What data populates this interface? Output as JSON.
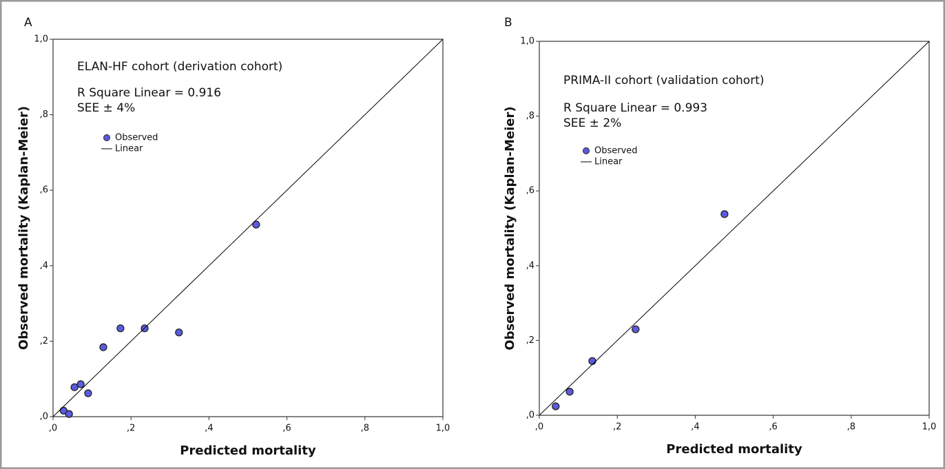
{
  "chart_data": [
    {
      "type": "scatter",
      "panel_label": "A",
      "annotations": [
        "ELAN-HF cohort (derivation cohort)",
        "R Square Linear = 0.916",
        "SEE ± 4%"
      ],
      "xlabel": "Predicted mortality",
      "ylabel": "Observed mortality (Kaplan-Meier)",
      "xlim": [
        0,
        1
      ],
      "ylim": [
        0,
        1
      ],
      "xticks": [
        {
          "value": 0,
          "label": ",0"
        },
        {
          "value": 0.2,
          "label": ",2"
        },
        {
          "value": 0.4,
          "label": ",4"
        },
        {
          "value": 0.6,
          "label": ",6"
        },
        {
          "value": 0.8,
          "label": ",8"
        },
        {
          "value": 1,
          "label": "1,0"
        }
      ],
      "yticks": [
        {
          "value": 0,
          "label": ",0"
        },
        {
          "value": 0.2,
          "label": ",2"
        },
        {
          "value": 0.4,
          "label": ",4"
        },
        {
          "value": 0.6,
          "label": ",6"
        },
        {
          "value": 0.8,
          "label": ",8"
        },
        {
          "value": 1,
          "label": "1,0"
        }
      ],
      "series": [
        {
          "name": "Observed",
          "type": "scatter",
          "color": "#5a5be0",
          "x": [
            0.027,
            0.041,
            0.055,
            0.071,
            0.09,
            0.129,
            0.173,
            0.235,
            0.323,
            0.521
          ],
          "values": [
            0.016,
            0.007,
            0.078,
            0.086,
            0.062,
            0.184,
            0.234,
            0.234,
            0.223,
            0.509
          ]
        },
        {
          "name": "Linear",
          "type": "line",
          "color": "#000000",
          "x": [
            0,
            1
          ],
          "values": [
            0,
            1
          ]
        }
      ]
    },
    {
      "type": "scatter",
      "panel_label": "B",
      "annotations": [
        "PRIMA-II cohort (validation cohort)",
        "R Square Linear = 0.993",
        "SEE ± 2%"
      ],
      "xlabel": "Predicted mortality",
      "ylabel": "Observed mortality (Kaplan-Meier)",
      "xlim": [
        0,
        1
      ],
      "ylim": [
        0,
        1
      ],
      "xticks": [
        {
          "value": 0,
          "label": ",0"
        },
        {
          "value": 0.2,
          "label": ",2"
        },
        {
          "value": 0.4,
          "label": ",4"
        },
        {
          "value": 0.6,
          "label": ",6"
        },
        {
          "value": 0.8,
          "label": ",8"
        },
        {
          "value": 1,
          "label": "1,0"
        }
      ],
      "yticks": [
        {
          "value": 0,
          "label": ",0"
        },
        {
          "value": 0.2,
          "label": ",2"
        },
        {
          "value": 0.4,
          "label": ",4"
        },
        {
          "value": 0.6,
          "label": ",6"
        },
        {
          "value": 0.8,
          "label": ",8"
        },
        {
          "value": 1,
          "label": "1,0"
        }
      ],
      "series": [
        {
          "name": "Observed",
          "type": "scatter",
          "color": "#5a5be0",
          "x": [
            0.042,
            0.078,
            0.136,
            0.247,
            0.475
          ],
          "values": [
            0.024,
            0.063,
            0.145,
            0.23,
            0.538
          ]
        },
        {
          "name": "Linear",
          "type": "line",
          "color": "#000000",
          "x": [
            0,
            1
          ],
          "values": [
            0,
            1
          ]
        }
      ]
    }
  ]
}
